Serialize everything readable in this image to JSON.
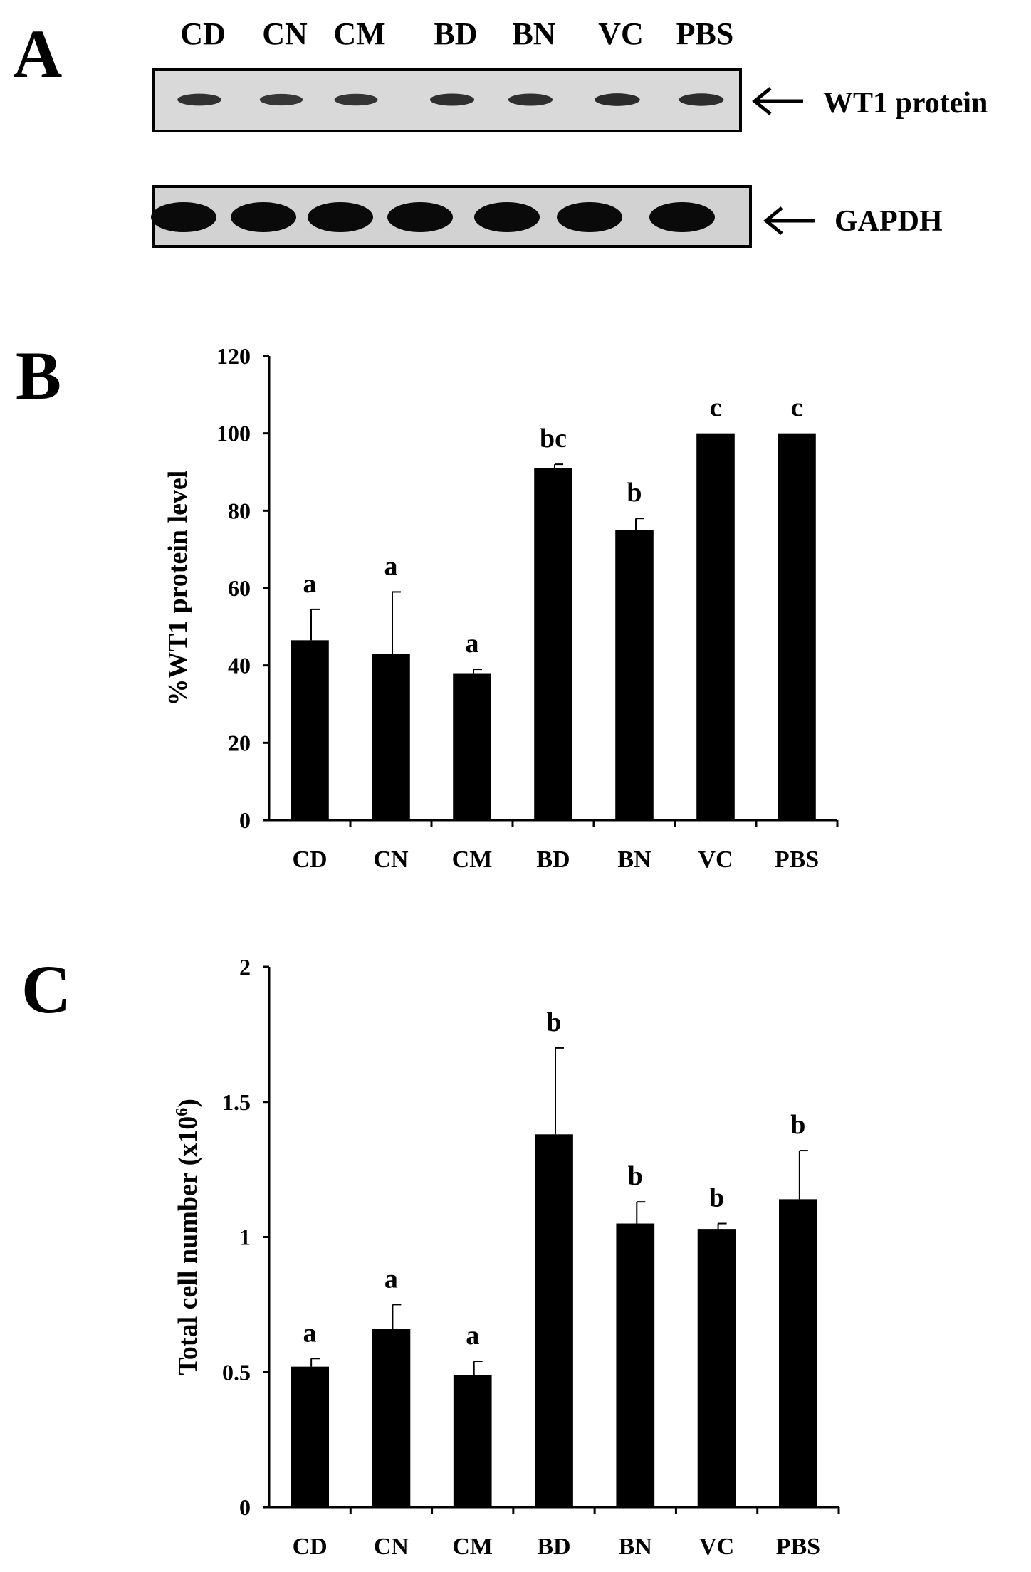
{
  "panel_a": {
    "letter": "A",
    "lanes": [
      "CD",
      "CN",
      "CM",
      "BD",
      "BN",
      "VC",
      "PBS"
    ],
    "blots": [
      {
        "label": "WT1 protein",
        "intensities": [
          0.8,
          0.7,
          0.75,
          0.85,
          0.85,
          0.95,
          0.9
        ]
      },
      {
        "label": "GAPDH",
        "intensities": [
          1,
          1,
          1,
          1,
          1,
          1,
          1
        ]
      }
    ]
  },
  "chart_data": [
    {
      "panel": "B",
      "type": "bar",
      "title": "",
      "xlabel": "",
      "ylabel": "%WT1 protein level",
      "ylim": [
        0,
        120
      ],
      "yticks": [
        0,
        20,
        40,
        60,
        80,
        100,
        120
      ],
      "categories": [
        "CD",
        "CN",
        "CM",
        "BD",
        "BN",
        "VC",
        "PBS"
      ],
      "values": [
        46.5,
        43,
        38,
        91,
        75,
        100,
        100
      ],
      "errors": [
        8,
        16,
        1,
        1,
        3,
        0,
        0
      ],
      "significance": [
        "a",
        "a",
        "a",
        "bc",
        "b",
        "c",
        "c"
      ]
    },
    {
      "panel": "C",
      "type": "bar",
      "title": "",
      "xlabel": "",
      "ylabel": "Total cell number (x10",
      "ylabel_superscript": "6",
      "ylabel_suffix": ")",
      "ylim": [
        0,
        2
      ],
      "yticks": [
        0,
        0.5,
        1,
        1.5,
        2
      ],
      "categories": [
        "CD",
        "CN",
        "CM",
        "BD",
        "BN",
        "VC",
        "PBS"
      ],
      "values": [
        0.52,
        0.66,
        0.49,
        1.38,
        1.05,
        1.03,
        1.14
      ],
      "errors": [
        0.03,
        0.09,
        0.05,
        0.32,
        0.08,
        0.02,
        0.18
      ],
      "significance": [
        "a",
        "a",
        "a",
        "b",
        "b",
        "b",
        "b"
      ]
    }
  ]
}
